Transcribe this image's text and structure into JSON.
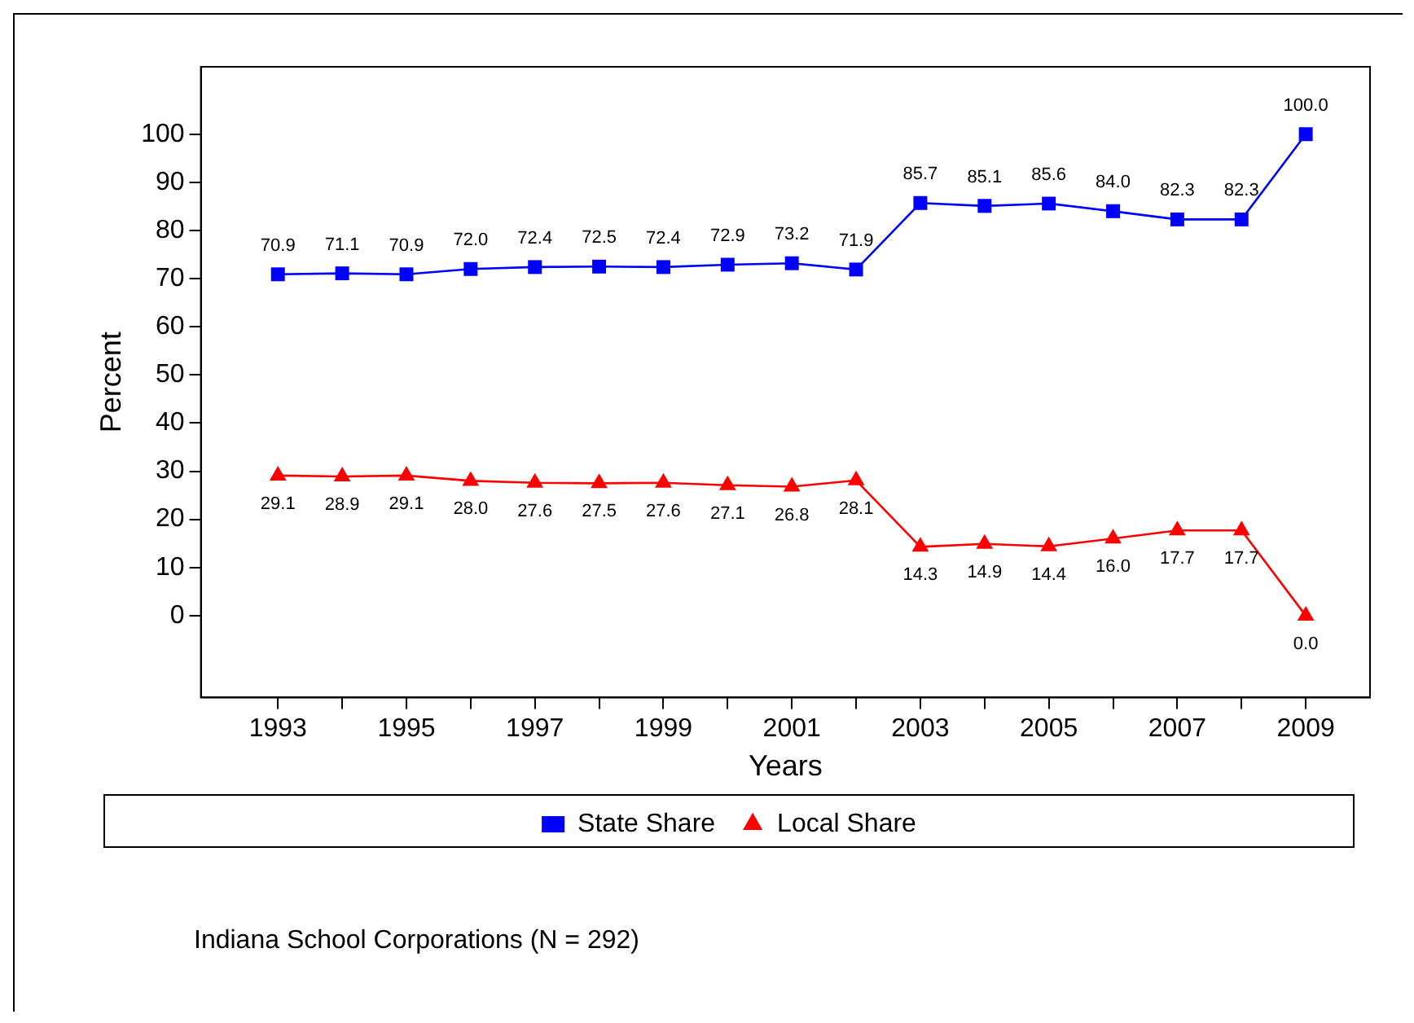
{
  "chart_data": {
    "type": "line",
    "xlabel": "Years",
    "ylabel": "Percent",
    "x": [
      1993,
      1994,
      1995,
      1996,
      1997,
      1998,
      1999,
      2000,
      2001,
      2002,
      2003,
      2004,
      2005,
      2006,
      2007,
      2008,
      2009
    ],
    "series": [
      {
        "name": "State Share",
        "color": "#0000ff",
        "marker": "square",
        "values": [
          70.9,
          71.1,
          70.9,
          72.0,
          72.4,
          72.5,
          72.4,
          72.9,
          73.2,
          71.9,
          85.7,
          85.1,
          85.6,
          84.0,
          82.3,
          82.3,
          100.0
        ],
        "value_labels": [
          "70.9",
          "71.1",
          "70.9",
          "72.0",
          "72.4",
          "72.5",
          "72.4",
          "72.9",
          "73.2",
          "71.9",
          "85.7",
          "85.1",
          "85.6",
          "84.0",
          "82.3",
          "82.3",
          "100.0"
        ]
      },
      {
        "name": "Local Share",
        "color": "#ff0000",
        "marker": "triangle",
        "values": [
          29.1,
          28.9,
          29.1,
          28.0,
          27.6,
          27.5,
          27.6,
          27.1,
          26.8,
          28.1,
          14.3,
          14.9,
          14.4,
          16.0,
          17.7,
          17.7,
          0.0
        ],
        "value_labels": [
          "29.1",
          "28.9",
          "29.1",
          "28.0",
          "27.6",
          "27.5",
          "27.6",
          "27.1",
          "26.8",
          "28.1",
          "14.3",
          "14.9",
          "14.4",
          "16.0",
          "17.7",
          "17.7",
          "0.0"
        ]
      }
    ],
    "xlim": [
      1991.8,
      2010
    ],
    "ylim": [
      -17,
      114
    ],
    "xticks": [
      1993,
      {
        "value": 1994,
        "label": null
      },
      1995,
      {
        "value": 1996,
        "label": null
      },
      1997,
      {
        "value": 1998,
        "label": null
      },
      1999,
      {
        "value": 2000,
        "label": null
      },
      2001,
      {
        "value": 2002,
        "label": null
      },
      2003,
      {
        "value": 2004,
        "label": null
      },
      2005,
      {
        "value": 2006,
        "label": null
      },
      2007,
      {
        "value": 2008,
        "label": null
      },
      2009
    ],
    "yticks": [
      0,
      10,
      20,
      30,
      40,
      50,
      60,
      70,
      80,
      90,
      100
    ],
    "grid": false,
    "legend": "bottom",
    "line_style": "solid",
    "annotations": [
      "Indiana School Corporations (N = 292)"
    ]
  }
}
